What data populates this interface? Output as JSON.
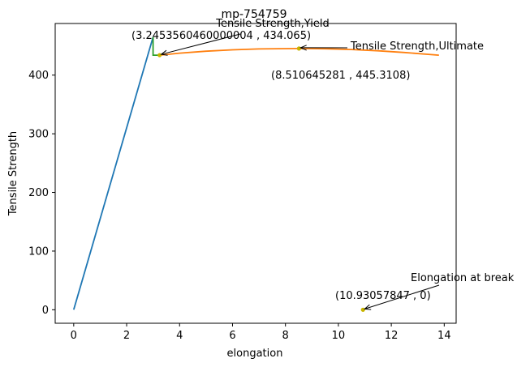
{
  "chart_data": {
    "type": "line",
    "title": "mp-754759",
    "xlabel": "elongation",
    "ylabel": "Tensile Strength",
    "xlim": [
      -0.7,
      14.45
    ],
    "ylim": [
      -23,
      488
    ],
    "xticks": [
      0,
      2,
      4,
      6,
      8,
      10,
      12,
      14
    ],
    "yticks": [
      0,
      100,
      200,
      300,
      400
    ],
    "grid": false,
    "legend": "none",
    "series": [
      {
        "color": "#1f77b4",
        "points": [
          [
            0,
            0
          ],
          [
            3.0,
            465
          ]
        ]
      },
      {
        "color": "#2ca02c",
        "points": [
          [
            3.0,
            465
          ],
          [
            3.0,
            434
          ],
          [
            3.245,
            434.065
          ]
        ]
      },
      {
        "color": "#ff7f0e",
        "points": [
          [
            3.245,
            434.065
          ],
          [
            4,
            437.5
          ],
          [
            5,
            440.8
          ],
          [
            6,
            443.1
          ],
          [
            7,
            444.6
          ],
          [
            8.51,
            445.31
          ],
          [
            9.5,
            444.9
          ],
          [
            10.5,
            443.6
          ],
          [
            11.5,
            441.5
          ],
          [
            12.5,
            438.5
          ],
          [
            13.8,
            434.0
          ]
        ]
      }
    ],
    "markers": [
      {
        "name": "yield",
        "x": 3.2453560460000004,
        "y": 434.065,
        "color": "#c8b400"
      },
      {
        "name": "ultimate",
        "x": 8.510645281,
        "y": 445.3108,
        "color": "#c8b400"
      },
      {
        "name": "break",
        "x": 10.93057847,
        "y": 0,
        "color": "#c8b400"
      }
    ],
    "annotations": [
      {
        "name": "yield",
        "label": "Tensile Strength,Yield",
        "coords": "(3.2453560460000004 , 434.065)"
      },
      {
        "name": "ultimate",
        "label": "Tensile Strength,Ultimate",
        "coords": "(8.510645281 , 445.3108)"
      },
      {
        "name": "break",
        "label": "Elongation at break",
        "coords": "(10.93057847 , 0)"
      }
    ]
  }
}
